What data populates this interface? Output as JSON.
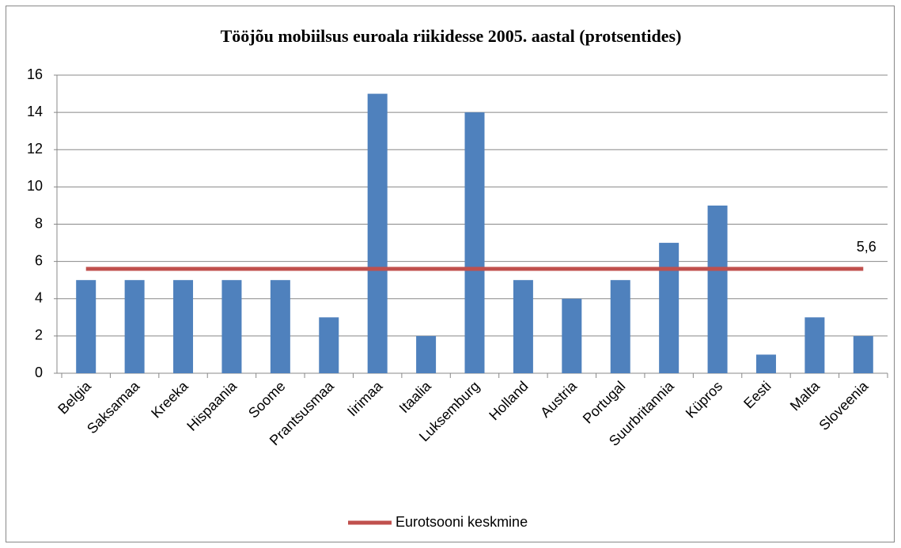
{
  "chart_data": {
    "type": "bar",
    "title": "Tööjõu mobiilsus euroala riikidesse 2005. aastal (protsentides)",
    "categories": [
      "Belgia",
      "Saksamaa",
      "Kreeka",
      "Hispaania",
      "Soome",
      "Prantsusmaa",
      "Iirimaa",
      "Itaalia",
      "Luksemburg",
      "Holland",
      "Austria",
      "Portugal",
      "Suurbritannia",
      "Küpros",
      "Eesti",
      "Malta",
      "Sloveenia"
    ],
    "values": [
      5,
      5,
      5,
      5,
      5,
      3,
      15,
      2,
      14,
      5,
      4,
      5,
      7,
      9,
      1,
      3,
      2
    ],
    "color": "#4f81bd",
    "reference_line": {
      "name": "Eurotsooni keskmine",
      "value": 5.6,
      "value_label": "5,6",
      "color": "#c0504d"
    },
    "ylim": [
      0,
      16
    ],
    "yticks": [
      0,
      2,
      4,
      6,
      8,
      10,
      12,
      14,
      16
    ],
    "grid": true,
    "legend": "bottom"
  }
}
